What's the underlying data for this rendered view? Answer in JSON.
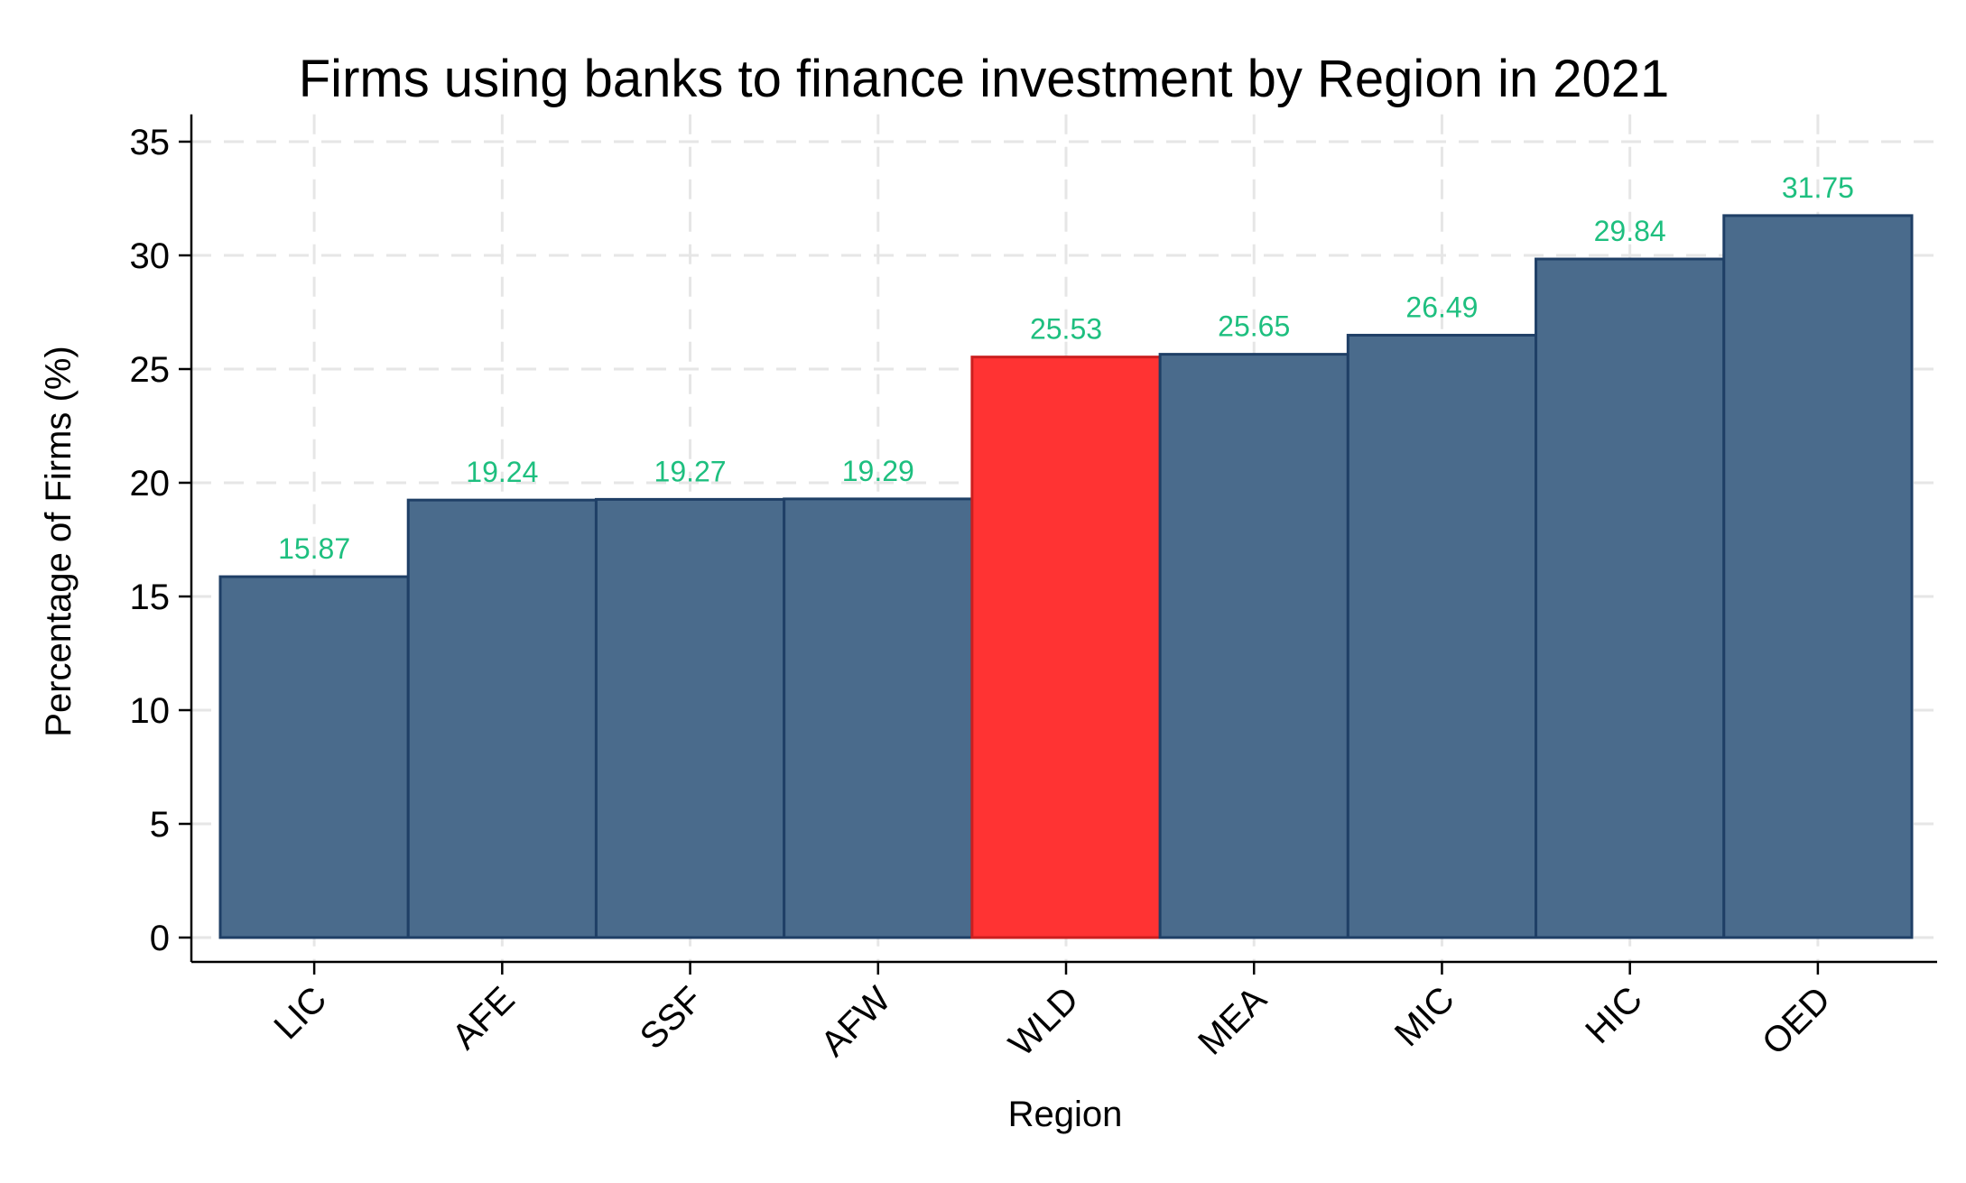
{
  "chart_data": {
    "type": "bar",
    "title": "Firms using banks to finance investment by Region in 2021",
    "xlabel": "Region",
    "ylabel": "Percentage of Firms (%)",
    "categories": [
      "LIC",
      "AFE",
      "SSF",
      "AFW",
      "WLD",
      "MEA",
      "MIC",
      "HIC",
      "OED"
    ],
    "values": [
      15.87,
      19.24,
      19.27,
      19.29,
      25.53,
      25.65,
      26.49,
      29.84,
      31.75
    ],
    "data_labels": [
      "15.87",
      "19.24",
      "19.27",
      "19.29",
      "25.53",
      "25.65",
      "26.49",
      "29.84",
      "31.75"
    ],
    "highlight_category": "WLD",
    "ylim": [
      0,
      36
    ],
    "yticks": [
      0,
      5,
      10,
      15,
      20,
      25,
      30,
      35
    ],
    "grid": true,
    "legend": "none",
    "colors": {
      "bar": "#4a6b8c",
      "bar_edge": "#1f3f66",
      "highlight": "#ff3333",
      "highlight_edge": "#cc1f1f",
      "label": "#1ebf7f",
      "grid": "#e6e6e6",
      "axis": "#000000"
    }
  }
}
